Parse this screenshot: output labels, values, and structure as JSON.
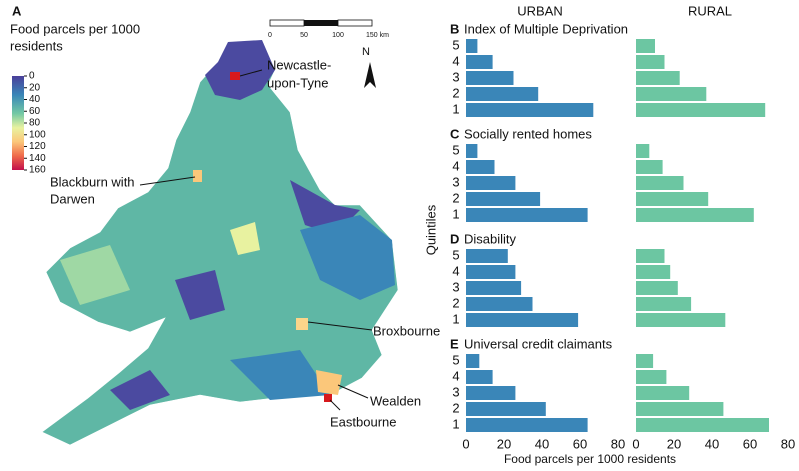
{
  "map": {
    "panel": "A",
    "legend_title": [
      "Food parcels per 1000",
      "residents"
    ],
    "legend_lim": [
      0,
      160
    ],
    "legend_ticks": [
      0,
      20,
      40,
      60,
      80,
      100,
      120,
      140,
      160
    ],
    "scale_labels": [
      "0",
      "50",
      "100",
      "150 km"
    ],
    "north": "N",
    "annotations": [
      [
        "Newcastle-",
        "upon-Tyne"
      ],
      [
        "Blackburn with",
        "Darwen"
      ],
      [
        "Broxbourne"
      ],
      [
        "Wealden"
      ],
      [
        "Eastbourne"
      ]
    ]
  },
  "columns": [
    "URBAN",
    "RURAL"
  ],
  "y_label": "Quintiles",
  "x_label": "Food parcels per 1000 residents",
  "chart_data": [
    {
      "type": "bar",
      "panel": "B",
      "title": "Index of Multiple Deprivation",
      "categories": [
        "5",
        "4",
        "3",
        "2",
        "1"
      ],
      "series": [
        {
          "color": "#3a86b8",
          "values": [
            6,
            14,
            25,
            38,
            67
          ]
        },
        {
          "color": "#6cc6a2",
          "values": [
            10,
            15,
            23,
            37,
            68
          ]
        }
      ],
      "xlim": [
        0,
        80
      ]
    },
    {
      "type": "bar",
      "panel": "C",
      "title": "Socially rented homes",
      "categories": [
        "5",
        "4",
        "3",
        "2",
        "1"
      ],
      "series": [
        {
          "color": "#3a86b8",
          "values": [
            6,
            15,
            26,
            39,
            64
          ]
        },
        {
          "color": "#6cc6a2",
          "values": [
            7,
            14,
            25,
            38,
            62
          ]
        }
      ],
      "xlim": [
        0,
        80
      ]
    },
    {
      "type": "bar",
      "panel": "D",
      "title": "Disability",
      "categories": [
        "5",
        "4",
        "3",
        "2",
        "1"
      ],
      "series": [
        {
          "color": "#3a86b8",
          "values": [
            22,
            26,
            29,
            35,
            59
          ]
        },
        {
          "color": "#6cc6a2",
          "values": [
            15,
            18,
            22,
            29,
            47
          ]
        }
      ],
      "xlim": [
        0,
        80
      ]
    },
    {
      "type": "bar",
      "panel": "E",
      "title": "Universal credit claimants",
      "categories": [
        "5",
        "4",
        "3",
        "2",
        "1"
      ],
      "series": [
        {
          "color": "#3a86b8",
          "values": [
            7,
            14,
            26,
            42,
            64
          ]
        },
        {
          "color": "#6cc6a2",
          "values": [
            9,
            16,
            28,
            46,
            70
          ]
        }
      ],
      "xlim": [
        0,
        80
      ],
      "xticks": [
        0,
        20,
        40,
        60,
        80
      ]
    }
  ]
}
